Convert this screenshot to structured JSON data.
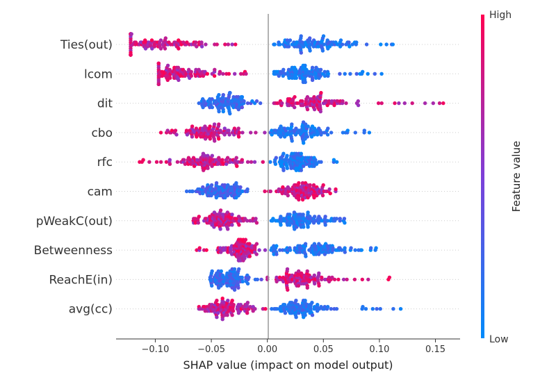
{
  "chart_data": {
    "type": "scatter",
    "subtype": "shap-beeswarm",
    "xlabel": "SHAP value (impact on model output)",
    "xlim": [
      -0.135,
      0.172
    ],
    "xticks": [
      "−0.10",
      "−0.05",
      "0.00",
      "0.05",
      "0.10",
      "0.15"
    ],
    "xtick_values": [
      -0.1,
      -0.05,
      0.0,
      0.05,
      0.1,
      0.15
    ],
    "colorbar": {
      "label": "Feature value",
      "high_label": "High",
      "low_label": "Low",
      "high_color": "#ff0051",
      "mid_color": "#7d3fd9",
      "low_color": "#008bfb"
    },
    "zero_line": true,
    "features": [
      {
        "name": "Ties(out)",
        "min": -0.122,
        "max": 0.112,
        "pattern": "low-positive",
        "spread": [
          [
            -0.09,
            0.12
          ],
          [
            0.04,
            0.14
          ]
        ]
      },
      {
        "name": "lcom",
        "min": -0.097,
        "max": 0.102,
        "pattern": "low-positive",
        "spread": [
          [
            -0.07,
            0.1
          ],
          [
            0.03,
            0.14
          ]
        ]
      },
      {
        "name": "dit",
        "min": -0.061,
        "max": 0.157,
        "pattern": "high-positive",
        "spread": [
          [
            -0.03,
            0.07
          ],
          [
            0.04,
            0.22
          ]
        ]
      },
      {
        "name": "cbo",
        "min": -0.095,
        "max": 0.091,
        "pattern": "low-positive",
        "spread": [
          [
            -0.045,
            0.1
          ],
          [
            0.03,
            0.12
          ]
        ]
      },
      {
        "name": "rfc",
        "min": -0.114,
        "max": 0.062,
        "pattern": "low-positive",
        "spread": [
          [
            -0.05,
            0.12
          ],
          [
            0.025,
            0.12
          ]
        ]
      },
      {
        "name": "cam",
        "min": -0.072,
        "max": 0.061,
        "pattern": "high-positive",
        "spread": [
          [
            -0.035,
            0.1
          ],
          [
            0.03,
            0.12
          ]
        ]
      },
      {
        "name": "pWeakC(out)",
        "min": -0.066,
        "max": 0.069,
        "pattern": "low-positive",
        "spread": [
          [
            -0.035,
            0.12
          ],
          [
            0.03,
            0.1
          ]
        ]
      },
      {
        "name": "Betweenness",
        "min": -0.063,
        "max": 0.097,
        "pattern": "low-positive",
        "spread": [
          [
            -0.02,
            0.13
          ],
          [
            0.04,
            0.12
          ]
        ]
      },
      {
        "name": "ReachE(in)",
        "min": -0.051,
        "max": 0.109,
        "pattern": "high-positive",
        "spread": [
          [
            -0.03,
            0.13
          ],
          [
            0.03,
            0.14
          ]
        ]
      },
      {
        "name": "avg(cc)",
        "min": -0.061,
        "max": 0.119,
        "pattern": "low-positive",
        "spread": [
          [
            -0.03,
            0.12
          ],
          [
            0.03,
            0.1
          ]
        ]
      }
    ]
  }
}
